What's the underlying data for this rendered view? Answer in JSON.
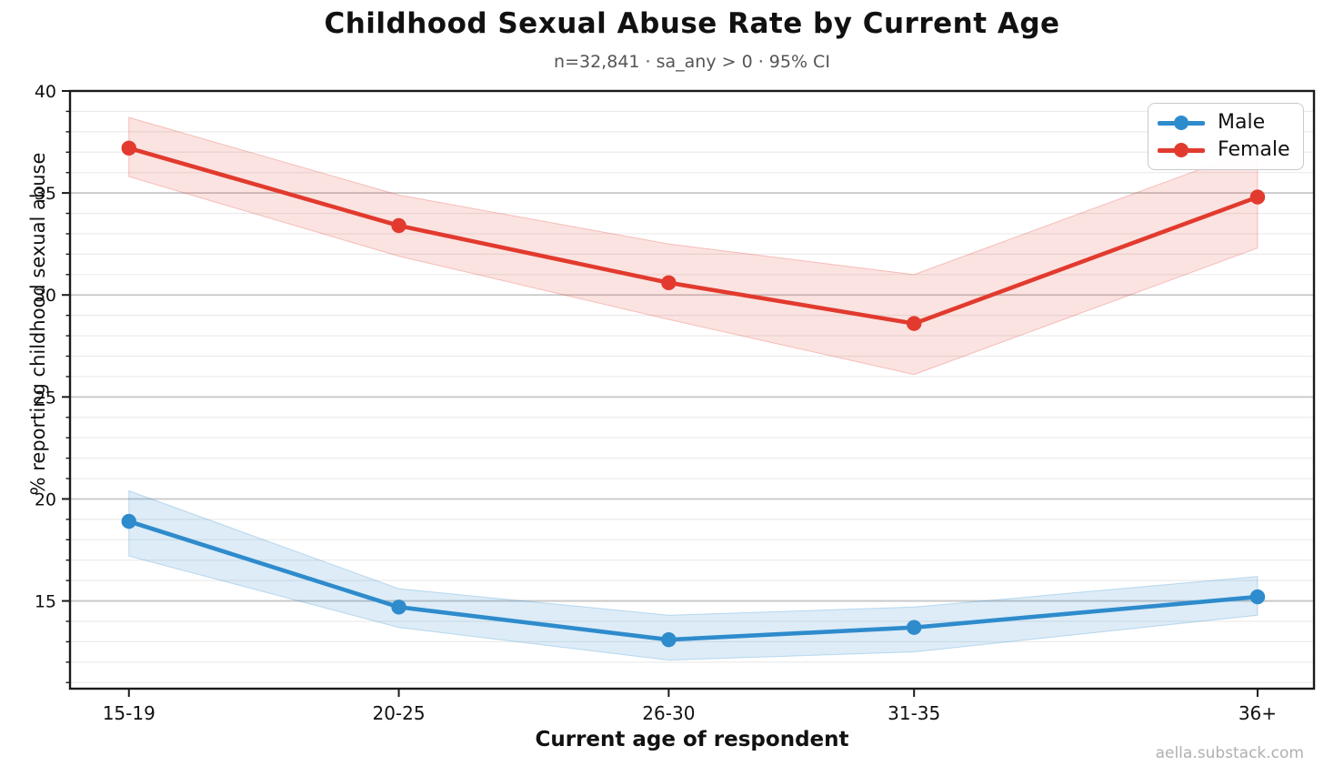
{
  "title": "Childhood Sexual Abuse Rate by Current Age",
  "subtitle": "n=32,841 · sa_any > 0 · 95% CI",
  "watermark": "aella.substack.com",
  "chart_data": {
    "type": "line",
    "title": "Childhood Sexual Abuse Rate by Current Age",
    "subtitle": "n=32,841 · sa_any > 0 · 95% CI",
    "xlabel": "Current age of respondent",
    "ylabel": "% reporting childhood sexual abuse",
    "categories": [
      "15-19",
      "20-25",
      "26-30",
      "31-35",
      "36+"
    ],
    "x_positions": [
      17,
      22.5,
      28,
      33,
      40
    ],
    "xlim": [
      15.8,
      41.15
    ],
    "ylim": [
      10.7,
      40
    ],
    "yticks": [
      15,
      20,
      25,
      30,
      35,
      40
    ],
    "grid": {
      "major_horizontal": true,
      "minor_horizontal": true,
      "vertical": false
    },
    "legend_position": "top-right",
    "series": [
      {
        "name": "Male",
        "color": "#2e8bcc",
        "band_fill_opacity": 0.16,
        "values": [
          18.9,
          14.7,
          13.1,
          13.7,
          15.2
        ],
        "ci_low": [
          17.2,
          13.7,
          12.1,
          12.5,
          14.3
        ],
        "ci_high": [
          20.4,
          15.6,
          14.3,
          14.7,
          16.2
        ]
      },
      {
        "name": "Female",
        "color": "#e23a2e",
        "band_fill_opacity": 0.14,
        "values": [
          37.2,
          33.4,
          30.6,
          28.6,
          34.8
        ],
        "ci_low": [
          35.8,
          31.9,
          28.8,
          26.1,
          32.3
        ],
        "ci_high": [
          38.7,
          34.9,
          32.5,
          31.0,
          37.2
        ]
      }
    ]
  }
}
